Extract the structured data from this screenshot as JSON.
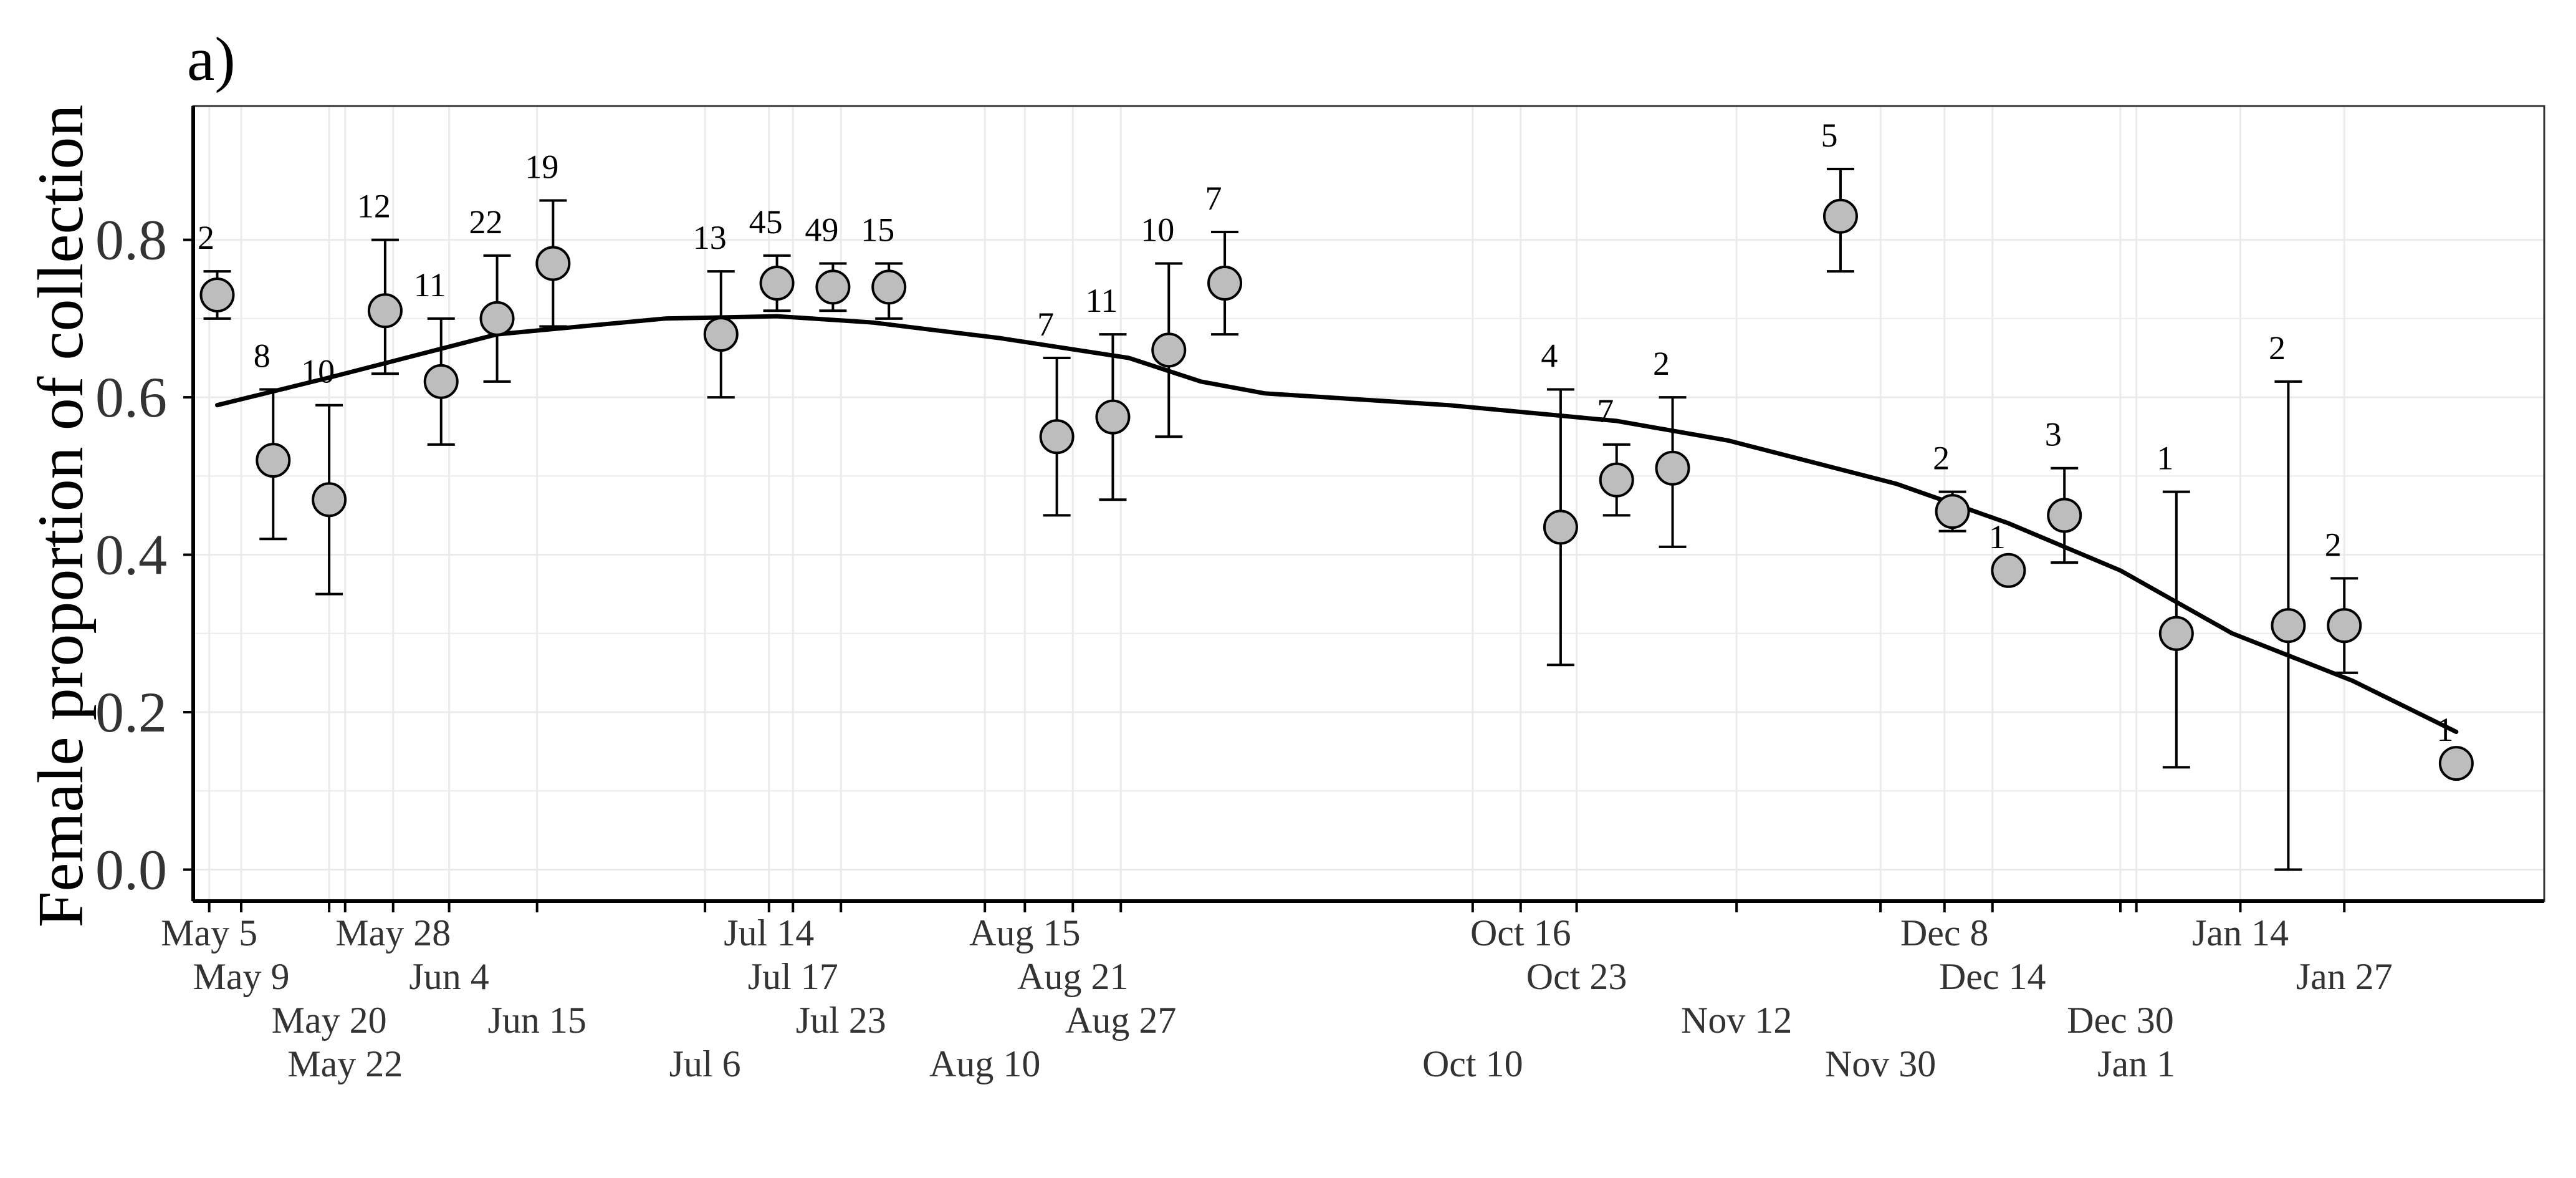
{
  "panel_label": "a)",
  "colors": {
    "panel_bg": "#ffffff",
    "grid": "#ebebeb",
    "axis": "#000000",
    "point_fill": "#bdbdbd",
    "point_stroke": "#000000",
    "trend_line": "#000000",
    "tick_text": "#333333"
  },
  "chart_data": {
    "type": "scatter",
    "title": "",
    "xlabel": "",
    "ylabel": "Female proportion of collection",
    "ylim": [
      -0.04,
      0.97
    ],
    "xlim": [
      "2021-05-03",
      "2022-02-01"
    ],
    "grid": true,
    "y_ticks": [
      "0.0",
      "0.2",
      "0.4",
      "0.6",
      "0.8"
    ],
    "x_tick_labels": [
      {
        "date": "2021-05-05",
        "label": "May 5"
      },
      {
        "date": "2021-05-09",
        "label": "May 9"
      },
      {
        "date": "2021-05-20",
        "label": "May 20"
      },
      {
        "date": "2021-05-22",
        "label": "May 22"
      },
      {
        "date": "2021-05-28",
        "label": "May 28"
      },
      {
        "date": "2021-06-04",
        "label": "Jun 4"
      },
      {
        "date": "2021-06-15",
        "label": "Jun 15"
      },
      {
        "date": "2021-07-06",
        "label": "Jul 6"
      },
      {
        "date": "2021-07-14",
        "label": "Jul 14"
      },
      {
        "date": "2021-07-17",
        "label": "Jul 17"
      },
      {
        "date": "2021-07-23",
        "label": "Jul 23"
      },
      {
        "date": "2021-08-10",
        "label": "Aug 10"
      },
      {
        "date": "2021-08-15",
        "label": "Aug 15"
      },
      {
        "date": "2021-08-21",
        "label": "Aug 21"
      },
      {
        "date": "2021-08-27",
        "label": "Aug 27"
      },
      {
        "date": "2021-10-10",
        "label": "Oct 10"
      },
      {
        "date": "2021-10-16",
        "label": "Oct 16"
      },
      {
        "date": "2021-10-23",
        "label": "Oct 23"
      },
      {
        "date": "2021-11-12",
        "label": "Nov 12"
      },
      {
        "date": "2021-11-30",
        "label": "Nov 30"
      },
      {
        "date": "2021-12-08",
        "label": "Dec 8"
      },
      {
        "date": "2021-12-14",
        "label": "Dec 14"
      },
      {
        "date": "2021-12-30",
        "label": "Dec 30"
      },
      {
        "date": "2022-01-01",
        "label": "Jan 1"
      },
      {
        "date": "2022-01-14",
        "label": "Jan 14"
      },
      {
        "date": "2022-01-27",
        "label": "Jan 27"
      }
    ],
    "series": [
      {
        "type": "scatter",
        "points": [
          {
            "date": "2021-05-06",
            "y": 0.73,
            "lower": 0.7,
            "upper": 0.76,
            "n": "2"
          },
          {
            "date": "2021-05-13",
            "y": 0.52,
            "lower": 0.42,
            "upper": 0.61,
            "n": "8"
          },
          {
            "date": "2021-05-20",
            "y": 0.47,
            "lower": 0.35,
            "upper": 0.59,
            "n": "10"
          },
          {
            "date": "2021-05-27",
            "y": 0.71,
            "lower": 0.63,
            "upper": 0.8,
            "n": "12"
          },
          {
            "date": "2021-06-03",
            "y": 0.62,
            "lower": 0.54,
            "upper": 0.7,
            "n": "11"
          },
          {
            "date": "2021-06-10",
            "y": 0.7,
            "lower": 0.62,
            "upper": 0.78,
            "n": "22"
          },
          {
            "date": "2021-06-17",
            "y": 0.77,
            "lower": 0.69,
            "upper": 0.85,
            "n": "19"
          },
          {
            "date": "2021-07-08",
            "y": 0.68,
            "lower": 0.6,
            "upper": 0.76,
            "n": "13"
          },
          {
            "date": "2021-07-15",
            "y": 0.745,
            "lower": 0.71,
            "upper": 0.78,
            "n": "45"
          },
          {
            "date": "2021-07-22",
            "y": 0.74,
            "lower": 0.71,
            "upper": 0.77,
            "n": "49"
          },
          {
            "date": "2021-07-29",
            "y": 0.74,
            "lower": 0.7,
            "upper": 0.77,
            "n": "15"
          },
          {
            "date": "2021-08-19",
            "y": 0.55,
            "lower": 0.45,
            "upper": 0.65,
            "n": "7"
          },
          {
            "date": "2021-08-26",
            "y": 0.575,
            "lower": 0.47,
            "upper": 0.68,
            "n": "11"
          },
          {
            "date": "2021-09-02",
            "y": 0.66,
            "lower": 0.55,
            "upper": 0.77,
            "n": "10"
          },
          {
            "date": "2021-09-09",
            "y": 0.745,
            "lower": 0.68,
            "upper": 0.81,
            "n": "7"
          },
          {
            "date": "2021-10-21",
            "y": 0.435,
            "lower": 0.26,
            "upper": 0.61,
            "n": "4"
          },
          {
            "date": "2021-10-28",
            "y": 0.495,
            "lower": 0.45,
            "upper": 0.54,
            "n": "7"
          },
          {
            "date": "2021-11-04",
            "y": 0.51,
            "lower": 0.41,
            "upper": 0.6,
            "n": "2"
          },
          {
            "date": "2021-11-25",
            "y": 0.83,
            "lower": 0.76,
            "upper": 0.89,
            "n": "5"
          },
          {
            "date": "2021-12-09",
            "y": 0.455,
            "lower": 0.43,
            "upper": 0.48,
            "n": "2"
          },
          {
            "date": "2021-12-16",
            "y": 0.38,
            "n": "1"
          },
          {
            "date": "2021-12-23",
            "y": 0.45,
            "lower": 0.39,
            "upper": 0.51,
            "n": "3"
          },
          {
            "date": "2022-01-06",
            "y": 0.3,
            "lower": 0.13,
            "upper": 0.48,
            "n": "1"
          },
          {
            "date": "2022-01-20",
            "y": 0.31,
            "lower": 0.0,
            "upper": 0.62,
            "n": "2"
          },
          {
            "date": "2022-01-27",
            "y": 0.31,
            "lower": 0.25,
            "upper": 0.37,
            "n": "2"
          },
          {
            "date": "2022-02-10",
            "y": 0.135,
            "n": "1"
          }
        ]
      },
      {
        "type": "line",
        "points": [
          {
            "date": "2021-05-06",
            "y": 0.59
          },
          {
            "date": "2021-05-20",
            "y": 0.625
          },
          {
            "date": "2021-06-10",
            "y": 0.68
          },
          {
            "date": "2021-07-01",
            "y": 0.7
          },
          {
            "date": "2021-07-15",
            "y": 0.703
          },
          {
            "date": "2021-07-27",
            "y": 0.695
          },
          {
            "date": "2021-08-12",
            "y": 0.675
          },
          {
            "date": "2021-08-28",
            "y": 0.65
          },
          {
            "date": "2021-09-06",
            "y": 0.62
          },
          {
            "date": "2021-09-14",
            "y": 0.605
          },
          {
            "date": "2021-10-07",
            "y": 0.59
          },
          {
            "date": "2021-10-28",
            "y": 0.57
          },
          {
            "date": "2021-11-11",
            "y": 0.545
          },
          {
            "date": "2021-12-02",
            "y": 0.49
          },
          {
            "date": "2021-12-16",
            "y": 0.44
          },
          {
            "date": "2021-12-30",
            "y": 0.38
          },
          {
            "date": "2022-01-13",
            "y": 0.3
          },
          {
            "date": "2022-01-28",
            "y": 0.24
          },
          {
            "date": "2022-02-10",
            "y": 0.175
          }
        ]
      }
    ]
  }
}
